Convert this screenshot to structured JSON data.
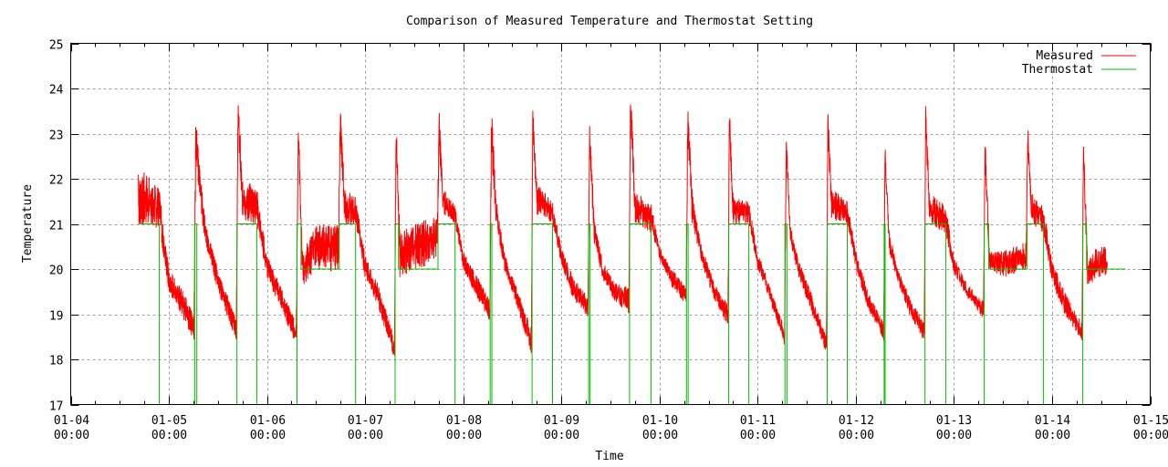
{
  "chart_data": {
    "type": "line",
    "title": "Comparison of Measured Temperature and Thermostat Setting",
    "xlabel": "Time",
    "ylabel": "Temperature",
    "ylim": [
      17,
      25
    ],
    "yticks": [
      17,
      18,
      19,
      20,
      21,
      22,
      23,
      24,
      25
    ],
    "xlim": [
      "01-04 00:00",
      "01-15 00:00"
    ],
    "xticks": [
      {
        "date": "01-04",
        "time": "00:00"
      },
      {
        "date": "01-05",
        "time": "00:00"
      },
      {
        "date": "01-06",
        "time": "00:00"
      },
      {
        "date": "01-07",
        "time": "00:00"
      },
      {
        "date": "01-08",
        "time": "00:00"
      },
      {
        "date": "01-09",
        "time": "00:00"
      },
      {
        "date": "01-10",
        "time": "00:00"
      },
      {
        "date": "01-11",
        "time": "00:00"
      },
      {
        "date": "01-12",
        "time": "00:00"
      },
      {
        "date": "01-13",
        "time": "00:00"
      },
      {
        "date": "01-14",
        "time": "00:00"
      },
      {
        "date": "01-15",
        "time": "00:00"
      }
    ],
    "grid": true,
    "legend_position": "top-right",
    "series": [
      {
        "name": "Measured",
        "color": "#ff0000",
        "envelope": [
          [
            "01-04 16:30",
            20.8,
            22.1
          ],
          [
            "01-04 18:00",
            21.0,
            22.2
          ],
          [
            "01-04 21:40",
            20.9,
            21.8
          ],
          [
            "01-05 00:00",
            19.5,
            20.0
          ],
          [
            "01-05 03:00",
            19.0,
            19.6
          ],
          [
            "01-05 06:10",
            18.4,
            19.0
          ],
          [
            "01-05 06:35",
            22.5,
            23.4
          ],
          [
            "01-05 07:30",
            21.5,
            22.3
          ],
          [
            "01-05 09:00",
            20.5,
            21.0
          ],
          [
            "01-05 12:00",
            19.5,
            20.0
          ],
          [
            "01-05 16:30",
            18.4,
            18.9
          ],
          [
            "01-05 16:55",
            23.0,
            24.0
          ],
          [
            "01-05 18:00",
            21.0,
            22.0
          ],
          [
            "01-05 21:30",
            21.0,
            21.8
          ],
          [
            "01-06 00:00",
            19.8,
            20.3
          ],
          [
            "01-06 03:00",
            19.2,
            19.7
          ],
          [
            "01-06 07:10",
            18.3,
            18.8
          ],
          [
            "01-06 07:40",
            22.8,
            23.4
          ],
          [
            "01-06 08:40",
            19.6,
            20.4
          ],
          [
            "01-06 12:00",
            20.0,
            21.0
          ],
          [
            "01-06 17:30",
            19.9,
            21.0
          ],
          [
            "01-06 17:55",
            22.8,
            23.7
          ],
          [
            "01-06 19:00",
            21.0,
            21.8
          ],
          [
            "01-06 21:40",
            21.0,
            21.6
          ],
          [
            "01-07 00:00",
            19.8,
            20.3
          ],
          [
            "01-07 03:00",
            19.2,
            19.7
          ],
          [
            "01-07 07:10",
            18.0,
            18.5
          ],
          [
            "01-07 07:35",
            22.8,
            23.4
          ],
          [
            "01-07 08:30",
            19.8,
            20.8
          ],
          [
            "01-07 12:00",
            20.0,
            21.0
          ],
          [
            "01-07 17:40",
            20.1,
            21.2
          ],
          [
            "01-07 18:05",
            22.8,
            23.6
          ],
          [
            "01-07 19:00",
            21.2,
            21.8
          ],
          [
            "01-07 22:00",
            21.0,
            21.4
          ],
          [
            "01-08 00:00",
            20.0,
            20.4
          ],
          [
            "01-08 02:00",
            19.6,
            20.1
          ],
          [
            "01-08 06:30",
            18.8,
            19.3
          ],
          [
            "01-08 06:55",
            22.5,
            23.7
          ],
          [
            "01-08 08:00",
            21.0,
            21.6
          ],
          [
            "01-08 10:00",
            20.0,
            20.4
          ],
          [
            "01-08 13:00",
            19.2,
            19.6
          ],
          [
            "01-08 16:40",
            18.1,
            18.7
          ],
          [
            "01-08 17:00",
            23.0,
            23.7
          ],
          [
            "01-08 18:00",
            21.2,
            21.9
          ],
          [
            "01-08 21:50",
            21.0,
            21.5
          ],
          [
            "01-09 00:00",
            20.1,
            20.5
          ],
          [
            "01-09 03:00",
            19.3,
            19.8
          ],
          [
            "01-09 06:30",
            18.9,
            19.4
          ],
          [
            "01-09 06:55",
            22.6,
            23.4
          ],
          [
            "01-09 08:00",
            20.6,
            21.2
          ],
          [
            "01-09 10:00",
            19.8,
            20.2
          ],
          [
            "01-09 13:00",
            19.3,
            19.7
          ],
          [
            "01-09 16:30",
            19.0,
            19.6
          ],
          [
            "01-09 16:55",
            23.3,
            24.1
          ],
          [
            "01-09 18:00",
            21.0,
            21.7
          ],
          [
            "01-09 21:50",
            20.8,
            21.5
          ],
          [
            "01-10 00:00",
            20.2,
            20.5
          ],
          [
            "01-10 03:00",
            19.6,
            20.0
          ],
          [
            "01-10 06:30",
            19.2,
            19.6
          ],
          [
            "01-10 06:55",
            22.6,
            23.7
          ],
          [
            "01-10 08:00",
            21.0,
            21.7
          ],
          [
            "01-10 10:00",
            20.2,
            20.6
          ],
          [
            "01-10 13:00",
            19.4,
            19.8
          ],
          [
            "01-10 16:45",
            18.7,
            19.2
          ],
          [
            "01-10 17:05",
            23.0,
            23.7
          ],
          [
            "01-10 18:00",
            21.0,
            21.6
          ],
          [
            "01-10 21:50",
            21.0,
            21.5
          ],
          [
            "01-11 00:00",
            20.0,
            20.4
          ],
          [
            "01-11 03:00",
            19.3,
            19.6
          ],
          [
            "01-11 06:35",
            18.3,
            18.7
          ],
          [
            "01-11 07:00",
            22.5,
            23.1
          ],
          [
            "01-11 08:00",
            20.6,
            21.0
          ],
          [
            "01-11 10:00",
            19.8,
            20.2
          ],
          [
            "01-11 13:00",
            19.1,
            19.5
          ],
          [
            "01-11 16:50",
            18.1,
            18.5
          ],
          [
            "01-11 17:10",
            23.0,
            23.7
          ],
          [
            "01-11 18:00",
            21.1,
            21.8
          ],
          [
            "01-11 21:55",
            21.0,
            21.5
          ],
          [
            "01-12 00:00",
            20.0,
            20.4
          ],
          [
            "01-12 03:00",
            19.1,
            19.5
          ],
          [
            "01-12 06:50",
            18.4,
            18.8
          ],
          [
            "01-12 07:10",
            22.4,
            23.0
          ],
          [
            "01-12 08:00",
            20.4,
            21.0
          ],
          [
            "01-12 10:00",
            19.8,
            20.1
          ],
          [
            "01-12 13:00",
            19.0,
            19.4
          ],
          [
            "01-12 16:45",
            18.4,
            18.8
          ],
          [
            "01-12 17:05",
            23.0,
            23.7
          ],
          [
            "01-12 18:00",
            21.0,
            21.7
          ],
          [
            "01-12 22:00",
            20.8,
            21.4
          ],
          [
            "01-13 00:00",
            19.9,
            20.3
          ],
          [
            "01-13 03:00",
            19.4,
            19.7
          ],
          [
            "01-13 07:15",
            18.9,
            19.3
          ],
          [
            "01-13 07:35",
            22.5,
            23.2
          ],
          [
            "01-13 08:40",
            20.0,
            20.4
          ],
          [
            "01-13 12:00",
            19.8,
            20.4
          ],
          [
            "01-13 17:40",
            20.0,
            20.6
          ],
          [
            "01-13 18:05",
            22.6,
            23.3
          ],
          [
            "01-13 19:00",
            21.0,
            21.7
          ],
          [
            "01-13 21:55",
            20.8,
            21.4
          ],
          [
            "01-14 00:00",
            19.7,
            20.2
          ],
          [
            "01-14 03:00",
            19.0,
            19.5
          ],
          [
            "01-14 07:20",
            18.4,
            18.8
          ],
          [
            "01-14 07:40",
            22.4,
            23.0
          ],
          [
            "01-14 08:40",
            19.6,
            20.2
          ],
          [
            "01-14 11:00",
            19.8,
            20.5
          ],
          [
            "01-14 13:30",
            19.8,
            20.5
          ]
        ]
      },
      {
        "name": "Thermostat",
        "color": "#00c000",
        "steps": [
          [
            "01-04 16:30",
            21
          ],
          [
            "01-04 21:40",
            17
          ],
          [
            "01-05 06:20",
            21
          ],
          [
            "01-05 06:50",
            17
          ],
          [
            "01-05 16:40",
            21
          ],
          [
            "01-05 21:30",
            17
          ],
          [
            "01-06 07:20",
            21
          ],
          [
            "01-06 08:20",
            20
          ],
          [
            "01-06 17:40",
            21
          ],
          [
            "01-06 21:40",
            17
          ],
          [
            "01-07 07:20",
            21
          ],
          [
            "01-07 08:10",
            20
          ],
          [
            "01-07 17:50",
            21
          ],
          [
            "01-07 22:00",
            17
          ],
          [
            "01-08 06:35",
            21
          ],
          [
            "01-08 07:00",
            17
          ],
          [
            "01-08 16:50",
            21
          ],
          [
            "01-08 21:50",
            17
          ],
          [
            "01-09 06:40",
            21
          ],
          [
            "01-09 07:00",
            17
          ],
          [
            "01-09 16:40",
            21
          ],
          [
            "01-09 21:55",
            17
          ],
          [
            "01-10 06:35",
            21
          ],
          [
            "01-10 07:00",
            17
          ],
          [
            "01-10 16:55",
            21
          ],
          [
            "01-10 21:50",
            17
          ],
          [
            "01-11 06:40",
            21
          ],
          [
            "01-11 07:10",
            17
          ],
          [
            "01-11 17:00",
            21
          ],
          [
            "01-11 21:55",
            17
          ],
          [
            "01-12 06:55",
            21
          ],
          [
            "01-12 07:10",
            17
          ],
          [
            "01-12 16:55",
            21
          ],
          [
            "01-12 22:00",
            17
          ],
          [
            "01-13 07:25",
            21
          ],
          [
            "01-13 08:30",
            20
          ],
          [
            "01-13 17:55",
            21
          ],
          [
            "01-13 21:55",
            17
          ],
          [
            "01-14 07:30",
            21
          ],
          [
            "01-14 08:25",
            20
          ],
          [
            "01-14 18:00",
            20
          ]
        ]
      }
    ]
  }
}
